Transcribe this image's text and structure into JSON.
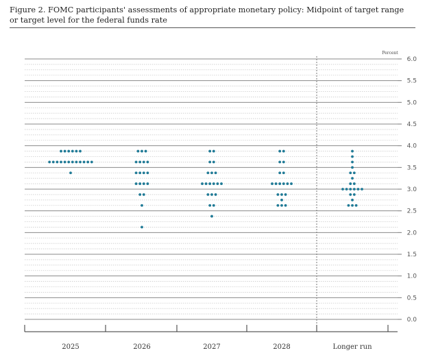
{
  "caption_line1": "Figure 2. FOMC participants' assessments of appropriate monetary policy: Midpoint of target range",
  "caption_line2": "or target level for the federal funds rate",
  "chart_data": {
    "type": "scatter",
    "subtype": "dot plot",
    "title": "Figure 2. FOMC participants' assessments of appropriate monetary policy: Midpoint of target range or target level for the federal funds rate",
    "ylabel": "Percent",
    "ylim": [
      0,
      6.0
    ],
    "ytick_labels": [
      "0.0",
      "0.5",
      "1.0",
      "1.5",
      "2.0",
      "2.5",
      "3.0",
      "3.5",
      "4.0",
      "4.5",
      "5.0",
      "5.5",
      "6.0"
    ],
    "categories": [
      "2025",
      "2026",
      "2027",
      "2028",
      "Longer run"
    ],
    "dot_color": "#1f7a96",
    "grid": true,
    "series": [
      {
        "category": "2025",
        "points": [
          {
            "y": 3.875,
            "count": 6
          },
          {
            "y": 3.625,
            "count": 12
          },
          {
            "y": 3.375,
            "count": 1
          }
        ]
      },
      {
        "category": "2026",
        "points": [
          {
            "y": 3.875,
            "count": 3
          },
          {
            "y": 3.625,
            "count": 4
          },
          {
            "y": 3.375,
            "count": 4
          },
          {
            "y": 3.125,
            "count": 4
          },
          {
            "y": 2.875,
            "count": 2
          },
          {
            "y": 2.625,
            "count": 1
          },
          {
            "y": 2.125,
            "count": 1
          }
        ]
      },
      {
        "category": "2027",
        "points": [
          {
            "y": 3.875,
            "count": 2
          },
          {
            "y": 3.625,
            "count": 2
          },
          {
            "y": 3.375,
            "count": 3
          },
          {
            "y": 3.125,
            "count": 6
          },
          {
            "y": 2.875,
            "count": 3
          },
          {
            "y": 2.625,
            "count": 2
          },
          {
            "y": 2.375,
            "count": 1
          }
        ]
      },
      {
        "category": "2028",
        "points": [
          {
            "y": 3.875,
            "count": 2
          },
          {
            "y": 3.625,
            "count": 2
          },
          {
            "y": 3.375,
            "count": 2
          },
          {
            "y": 3.125,
            "count": 6
          },
          {
            "y": 2.875,
            "count": 3
          },
          {
            "y": 2.75,
            "count": 1
          },
          {
            "y": 2.625,
            "count": 3
          }
        ]
      },
      {
        "category": "Longer run",
        "points": [
          {
            "y": 3.875,
            "count": 1
          },
          {
            "y": 3.75,
            "count": 1
          },
          {
            "y": 3.625,
            "count": 1
          },
          {
            "y": 3.5,
            "count": 1
          },
          {
            "y": 3.375,
            "count": 2
          },
          {
            "y": 3.25,
            "count": 1
          },
          {
            "y": 3.125,
            "count": 2
          },
          {
            "y": 3.0,
            "count": 6
          },
          {
            "y": 2.875,
            "count": 2
          },
          {
            "y": 2.75,
            "count": 1
          },
          {
            "y": 2.625,
            "count": 3
          }
        ]
      }
    ]
  }
}
